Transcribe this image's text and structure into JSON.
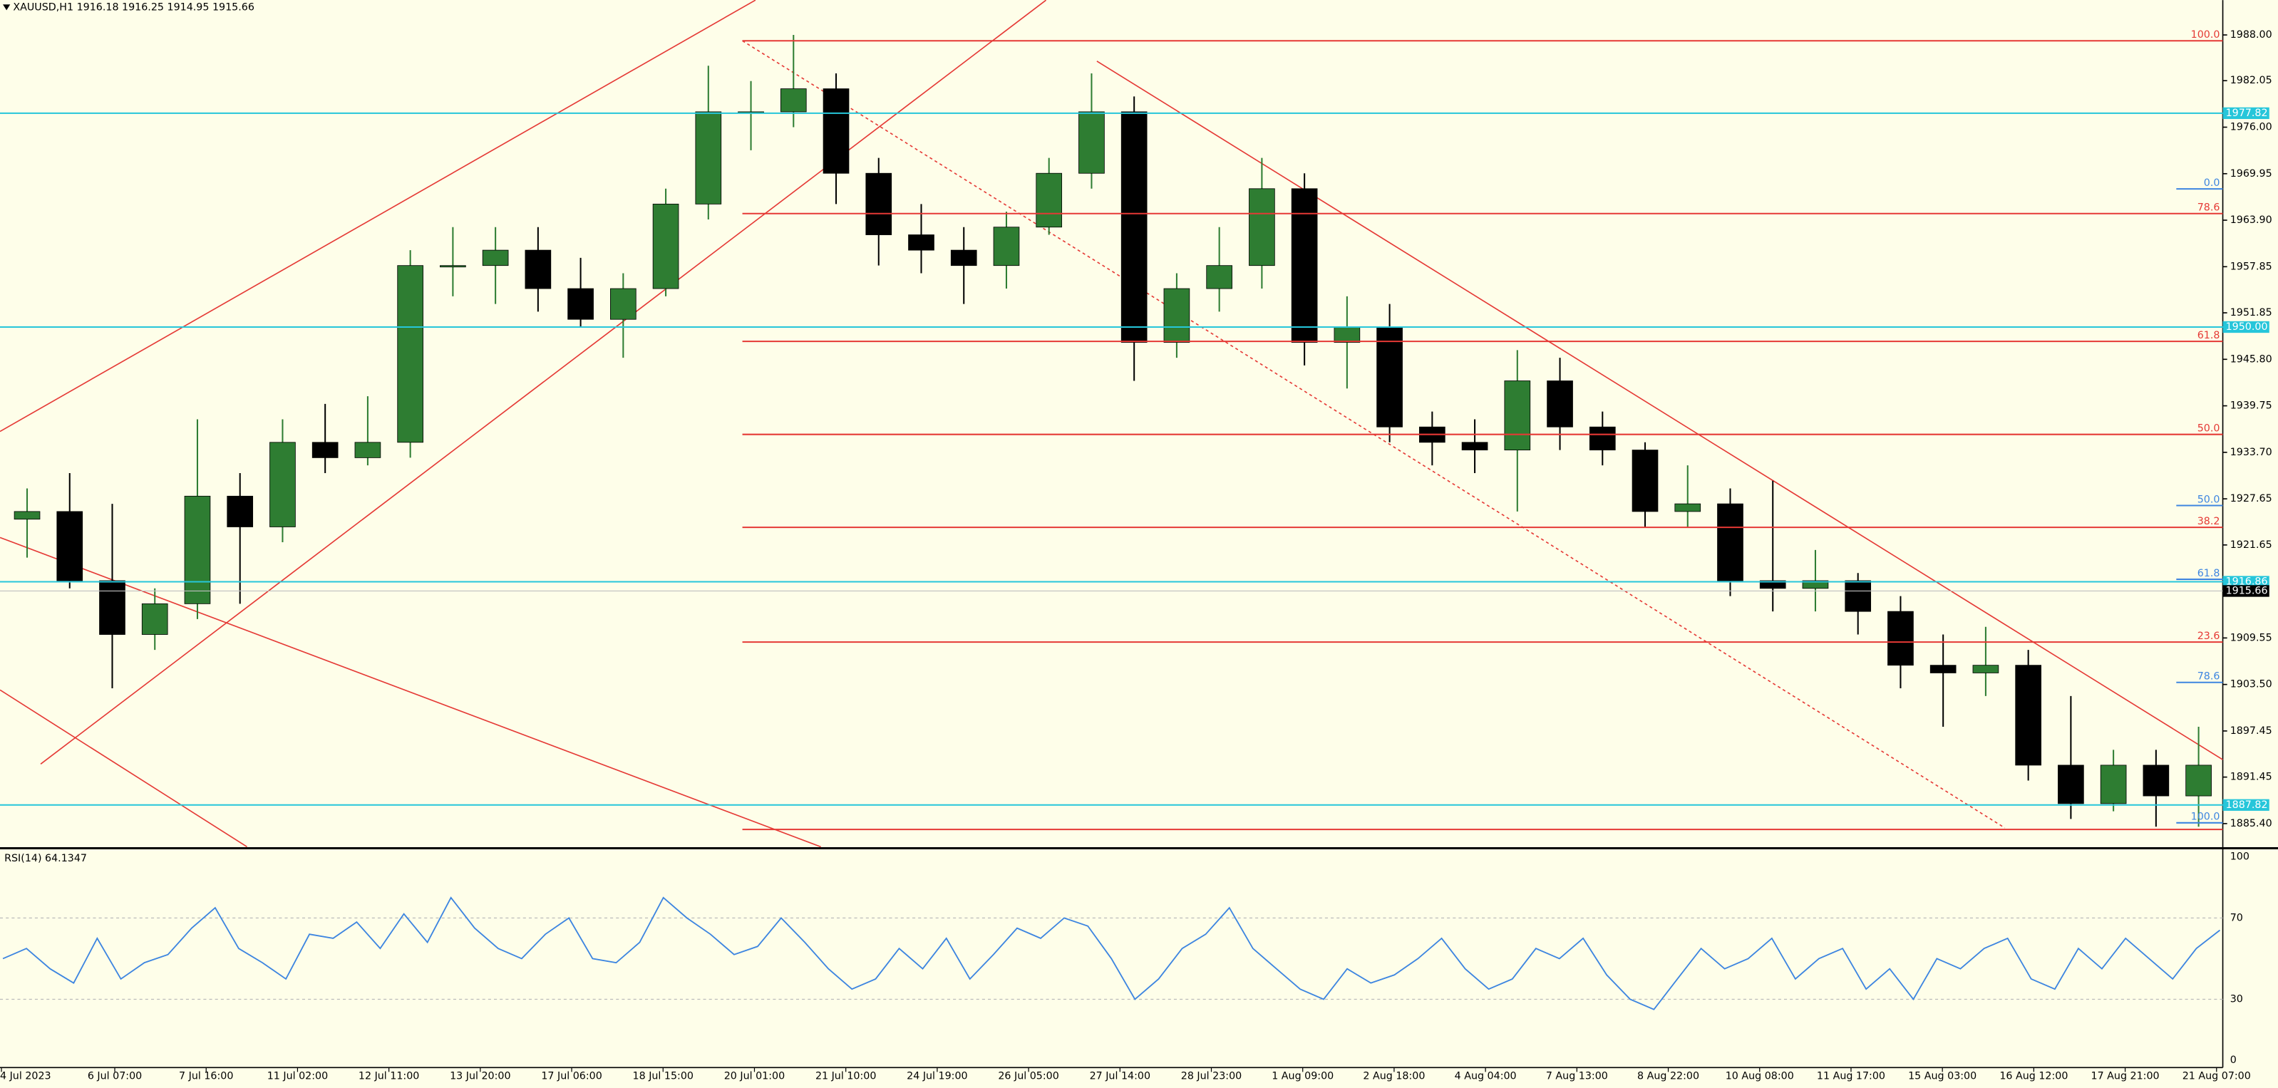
{
  "chart_data": {
    "type": "candlestick",
    "title": "XAUUSD,H1",
    "header_quote": [
      1916.18,
      1916.25,
      1914.95,
      1915.66
    ],
    "ylim": [
      1882.38,
      1992.53
    ],
    "yticks": [
      {
        "value": 1988,
        "label": "1988.00"
      },
      1982.05,
      {
        "value": 1976,
        "label": "1976.00"
      },
      1969.95,
      {
        "value": 1963.9,
        "label": "1963.90"
      },
      1957.85,
      1951.85,
      {
        "value": 1945.8,
        "label": "1945.80"
      },
      1939.75,
      {
        "value": 1933.7,
        "label": "1933.70"
      },
      1927.65,
      1921.65,
      1909.55,
      {
        "value": 1903.5,
        "label": "1903.50"
      },
      1897.45,
      1891.45,
      {
        "value": 1885.4,
        "label": "1885.40"
      }
    ],
    "open": [
      1925,
      1926,
      1917,
      1910,
      1914,
      1928,
      1924,
      1935,
      1933,
      1935,
      1958,
      1958,
      1960,
      1955,
      1951,
      1955,
      1966,
      1978,
      1978,
      1981,
      1970,
      1962,
      1960,
      1958,
      1963,
      1970,
      1978,
      1948,
      1955,
      1958,
      1968,
      1948,
      1950,
      1937,
      1935,
      1934,
      1943,
      1937,
      1934,
      1926,
      1927,
      1917,
      1916,
      1917,
      1913,
      1906,
      1905,
      1906,
      1893,
      1888,
      1893,
      1889
    ],
    "high": [
      1929,
      1931,
      1927,
      1916,
      1938,
      1931,
      1938,
      1940,
      1941,
      1960,
      1963,
      1963,
      1963,
      1959,
      1957,
      1968,
      1984,
      1982,
      1988,
      1983,
      1972,
      1966,
      1963,
      1965,
      1972,
      1983,
      1980,
      1957,
      1963,
      1972,
      1970,
      1954,
      1953,
      1939,
      1938,
      1947,
      1946,
      1939,
      1935,
      1932,
      1929,
      1930,
      1921,
      1918,
      1915,
      1910,
      1911,
      1908,
      1902,
      1895,
      1895,
      1898
    ],
    "low": [
      1920,
      1916,
      1903,
      1908,
      1912,
      1914,
      1922,
      1931,
      1932,
      1933,
      1954,
      1953,
      1952,
      1950,
      1946,
      1954,
      1964,
      1973,
      1976,
      1966,
      1958,
      1957,
      1953,
      1955,
      1962,
      1968,
      1943,
      1946,
      1952,
      1955,
      1945,
      1942,
      1935,
      1932,
      1931,
      1926,
      1934,
      1932,
      1924,
      1924,
      1915,
      1913,
      1913,
      1910,
      1903,
      1898,
      1902,
      1891,
      1886,
      1887,
      1885,
      1885
    ],
    "close": [
      1926,
      1917,
      1910,
      1914,
      1928,
      1924,
      1935,
      1933,
      1935,
      1958,
      1958,
      1960,
      1955,
      1951,
      1955,
      1966,
      1978,
      1978,
      1981,
      1970,
      1962,
      1960,
      1958,
      1963,
      1970,
      1978,
      1948,
      1955,
      1958,
      1968,
      1948,
      1950,
      1937,
      1935,
      1934,
      1943,
      1937,
      1934,
      1926,
      1927,
      1917,
      1916,
      1917,
      1913,
      1906,
      1905,
      1906,
      1893,
      1888,
      1893,
      1889,
      1893
    ],
    "up_color": "#2e7d32",
    "down_color": "#000000",
    "levels": [
      {
        "value": 1977.82,
        "label": "1977.82"
      },
      {
        "value": 1950,
        "label": "1950.00"
      },
      1916.86,
      1887.82
    ],
    "price": 1915.66,
    "fib": {
      "prices": [
        1987.24,
        1964.76,
        1948.13,
        1936.03,
        1923.94,
        1909.02,
        1884.64
      ],
      "labels": [
        "100.0",
        "78.6",
        "61.8",
        "50.0",
        "38.2",
        "23.6",
        null
      ]
    },
    "blue_fib": {
      "prices": [
        1967.97,
        1926.78,
        1917.18,
        1903.77,
        1885.5
      ],
      "labels": [
        "0.0",
        "50.0",
        "61.8",
        "78.6",
        "100.0"
      ]
    },
    "x_labels": [
      "4 Jul 2023",
      "6 Jul 07:00",
      "7 Jul 16:00",
      "11 Jul 02:00",
      "12 Jul 11:00",
      "13 Jul 20:00",
      "17 Jul 06:00",
      "18 Jul 15:00",
      "20 Jul 01:00",
      "21 Jul 10:00",
      "24 Jul 19:00",
      "26 Jul 05:00",
      "27 Jul 14:00",
      "28 Jul 23:00",
      "1 Aug 09:00",
      "2 Aug 18:00",
      "4 Aug 04:00",
      "7 Aug 13:00",
      "8 Aug 22:00",
      "10 Aug 08:00",
      "11 Aug 17:00",
      "15 Aug 03:00",
      "16 Aug 12:00",
      "17 Aug 21:00",
      "21 Aug 07:00"
    ],
    "rsi": {
      "label": "RSI(14) 64.1347",
      "ylim": [
        0,
        100
      ],
      "yticks": [
        0,
        30,
        70,
        100
      ],
      "color": "#3d85e0",
      "values": [
        50,
        55,
        45,
        38,
        60,
        40,
        48,
        52,
        65,
        75,
        55,
        48,
        40,
        62,
        60,
        68,
        55,
        72,
        58,
        80,
        65,
        55,
        50,
        62,
        70,
        50,
        48,
        58,
        80,
        70,
        62,
        52,
        56,
        70,
        58,
        45,
        35,
        40,
        55,
        45,
        60,
        40,
        52,
        65,
        60,
        70,
        66,
        50,
        30,
        40,
        55,
        62,
        75,
        55,
        45,
        35,
        30,
        45,
        38,
        42,
        50,
        60,
        45,
        35,
        40,
        55,
        50,
        60,
        42,
        30,
        25,
        40,
        55,
        45,
        50,
        60,
        40,
        50,
        55,
        35,
        45,
        30,
        50,
        45,
        55,
        60,
        40,
        35,
        55,
        45,
        60,
        50,
        40,
        55,
        64
      ]
    }
  }
}
